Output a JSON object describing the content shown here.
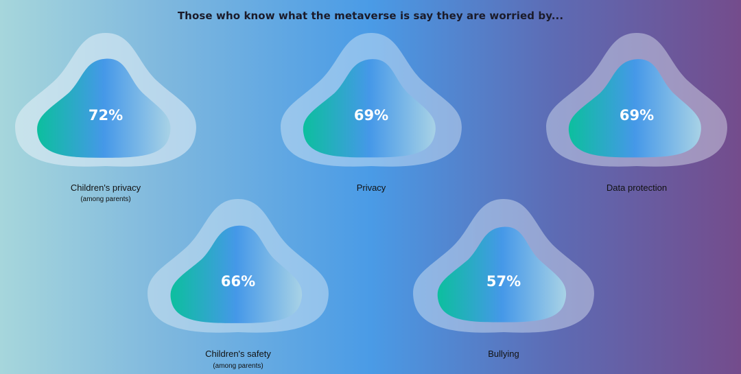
{
  "title": "Those who know what the metaverse is say they are worried by...",
  "chart_data": {
    "type": "bubble-infographic",
    "unit": "%",
    "items": [
      {
        "label": "Children's privacy",
        "sublabel": "(among parents)",
        "value": 72
      },
      {
        "label": "Privacy",
        "sublabel": "",
        "value": 69
      },
      {
        "label": "Data protection",
        "sublabel": "",
        "value": 69
      },
      {
        "label": "Children's safety",
        "sublabel": "(among parents)",
        "value": 66
      },
      {
        "label": "Bullying",
        "sublabel": "",
        "value": 57
      }
    ]
  },
  "colors": {
    "inner_start": "#0cbf9e",
    "inner_mid": "#4598e8",
    "inner_end": "#a8d2e6",
    "outer_fill": "#e8f0f8"
  }
}
